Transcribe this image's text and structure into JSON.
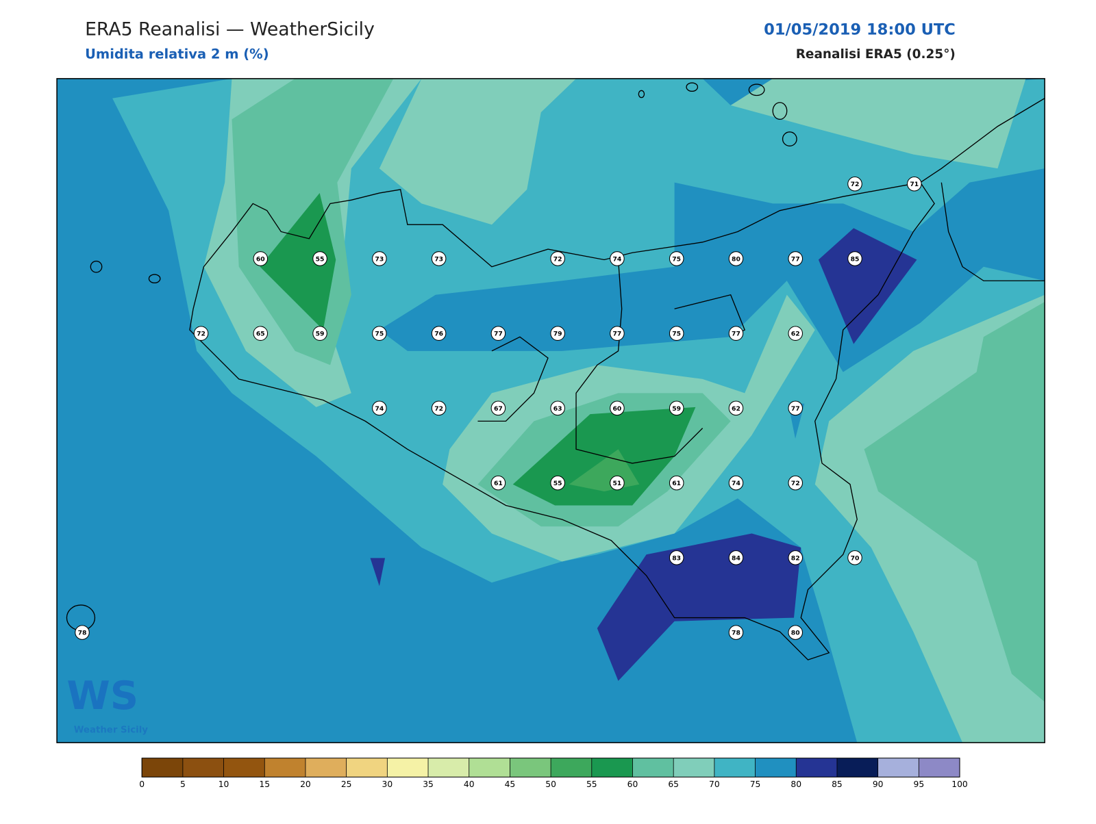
{
  "header": {
    "title": "ERA5 Reanalisi — WeatherSicily",
    "subtitle": "Umidita relativa 2 m (%)",
    "datetime": "01/05/2019 18:00 UTC",
    "source": "Reanalisi ERA5 (0.25°)"
  },
  "logo": {
    "letters": "WS",
    "name": "Weather Sicily"
  },
  "stations": [
    [
      null,
      null,
      null,
      null,
      null,
      null,
      null,
      null,
      null,
      null,
      null,
      null,
      null,
      72,
      71
    ],
    [
      null,
      null,
      null,
      60,
      55,
      73,
      73,
      null,
      72,
      74,
      75,
      80,
      77,
      85,
      null
    ],
    [
      null,
      null,
      72,
      65,
      59,
      75,
      76,
      77,
      79,
      77,
      75,
      77,
      62,
      null,
      null
    ],
    [
      null,
      null,
      null,
      null,
      null,
      74,
      72,
      67,
      63,
      60,
      59,
      62,
      77,
      null,
      null
    ],
    [
      null,
      null,
      null,
      null,
      null,
      null,
      null,
      61,
      55,
      51,
      61,
      74,
      72,
      null,
      null
    ],
    [
      null,
      null,
      null,
      null,
      null,
      null,
      null,
      null,
      null,
      null,
      83,
      84,
      82,
      70,
      null
    ],
    [
      78,
      null,
      null,
      null,
      null,
      null,
      null,
      null,
      null,
      null,
      null,
      78,
      80,
      null,
      null
    ]
  ],
  "colorbar": {
    "ticks": [
      0,
      5,
      10,
      15,
      20,
      25,
      30,
      35,
      40,
      45,
      50,
      55,
      60,
      65,
      70,
      75,
      80,
      85,
      90,
      95,
      100
    ],
    "colors": [
      "#7b4509",
      "#8c5010",
      "#93550f",
      "#c0822e",
      "#dfae5c",
      "#f0d480",
      "#f5f2a6",
      "#d8ecaa",
      "#b0df95",
      "#7ac67c",
      "#3da85c",
      "#1a9850",
      "#60c0a0",
      "#80ceba",
      "#40b4c4",
      "#2090c0",
      "#253494",
      "#081d58",
      "#a6b0dc",
      "#8d89c6"
    ]
  }
}
